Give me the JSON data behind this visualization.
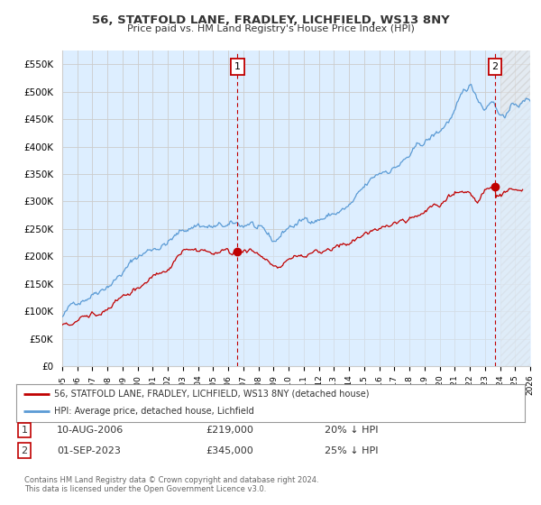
{
  "title": "56, STATFOLD LANE, FRADLEY, LICHFIELD, WS13 8NY",
  "subtitle": "Price paid vs. HM Land Registry's House Price Index (HPI)",
  "ylim": [
    0,
    575000
  ],
  "yticks": [
    0,
    50000,
    100000,
    150000,
    200000,
    250000,
    300000,
    350000,
    400000,
    450000,
    500000,
    550000
  ],
  "ytick_labels": [
    "£0",
    "£50K",
    "£100K",
    "£150K",
    "£200K",
    "£250K",
    "£300K",
    "£350K",
    "£400K",
    "£450K",
    "£500K",
    "£550K"
  ],
  "hpi_color": "#5b9bd5",
  "hpi_fill_color": "#ddeeff",
  "price_color": "#c00000",
  "marker1_year": 2006.6,
  "marker1_price": 219000,
  "marker2_year": 2023.67,
  "marker2_price": 345000,
  "legend_line1": "56, STATFOLD LANE, FRADLEY, LICHFIELD, WS13 8NY (detached house)",
  "legend_line2": "HPI: Average price, detached house, Lichfield",
  "table_row1": [
    "1",
    "10-AUG-2006",
    "£219,000",
    "20% ↓ HPI"
  ],
  "table_row2": [
    "2",
    "01-SEP-2023",
    "£345,000",
    "25% ↓ HPI"
  ],
  "footer": "Contains HM Land Registry data © Crown copyright and database right 2024.\nThis data is licensed under the Open Government Licence v3.0.",
  "background_color": "#ffffff",
  "grid_color": "#cccccc",
  "future_start": 2024.0,
  "xlim_start": 1995,
  "xlim_end": 2026
}
